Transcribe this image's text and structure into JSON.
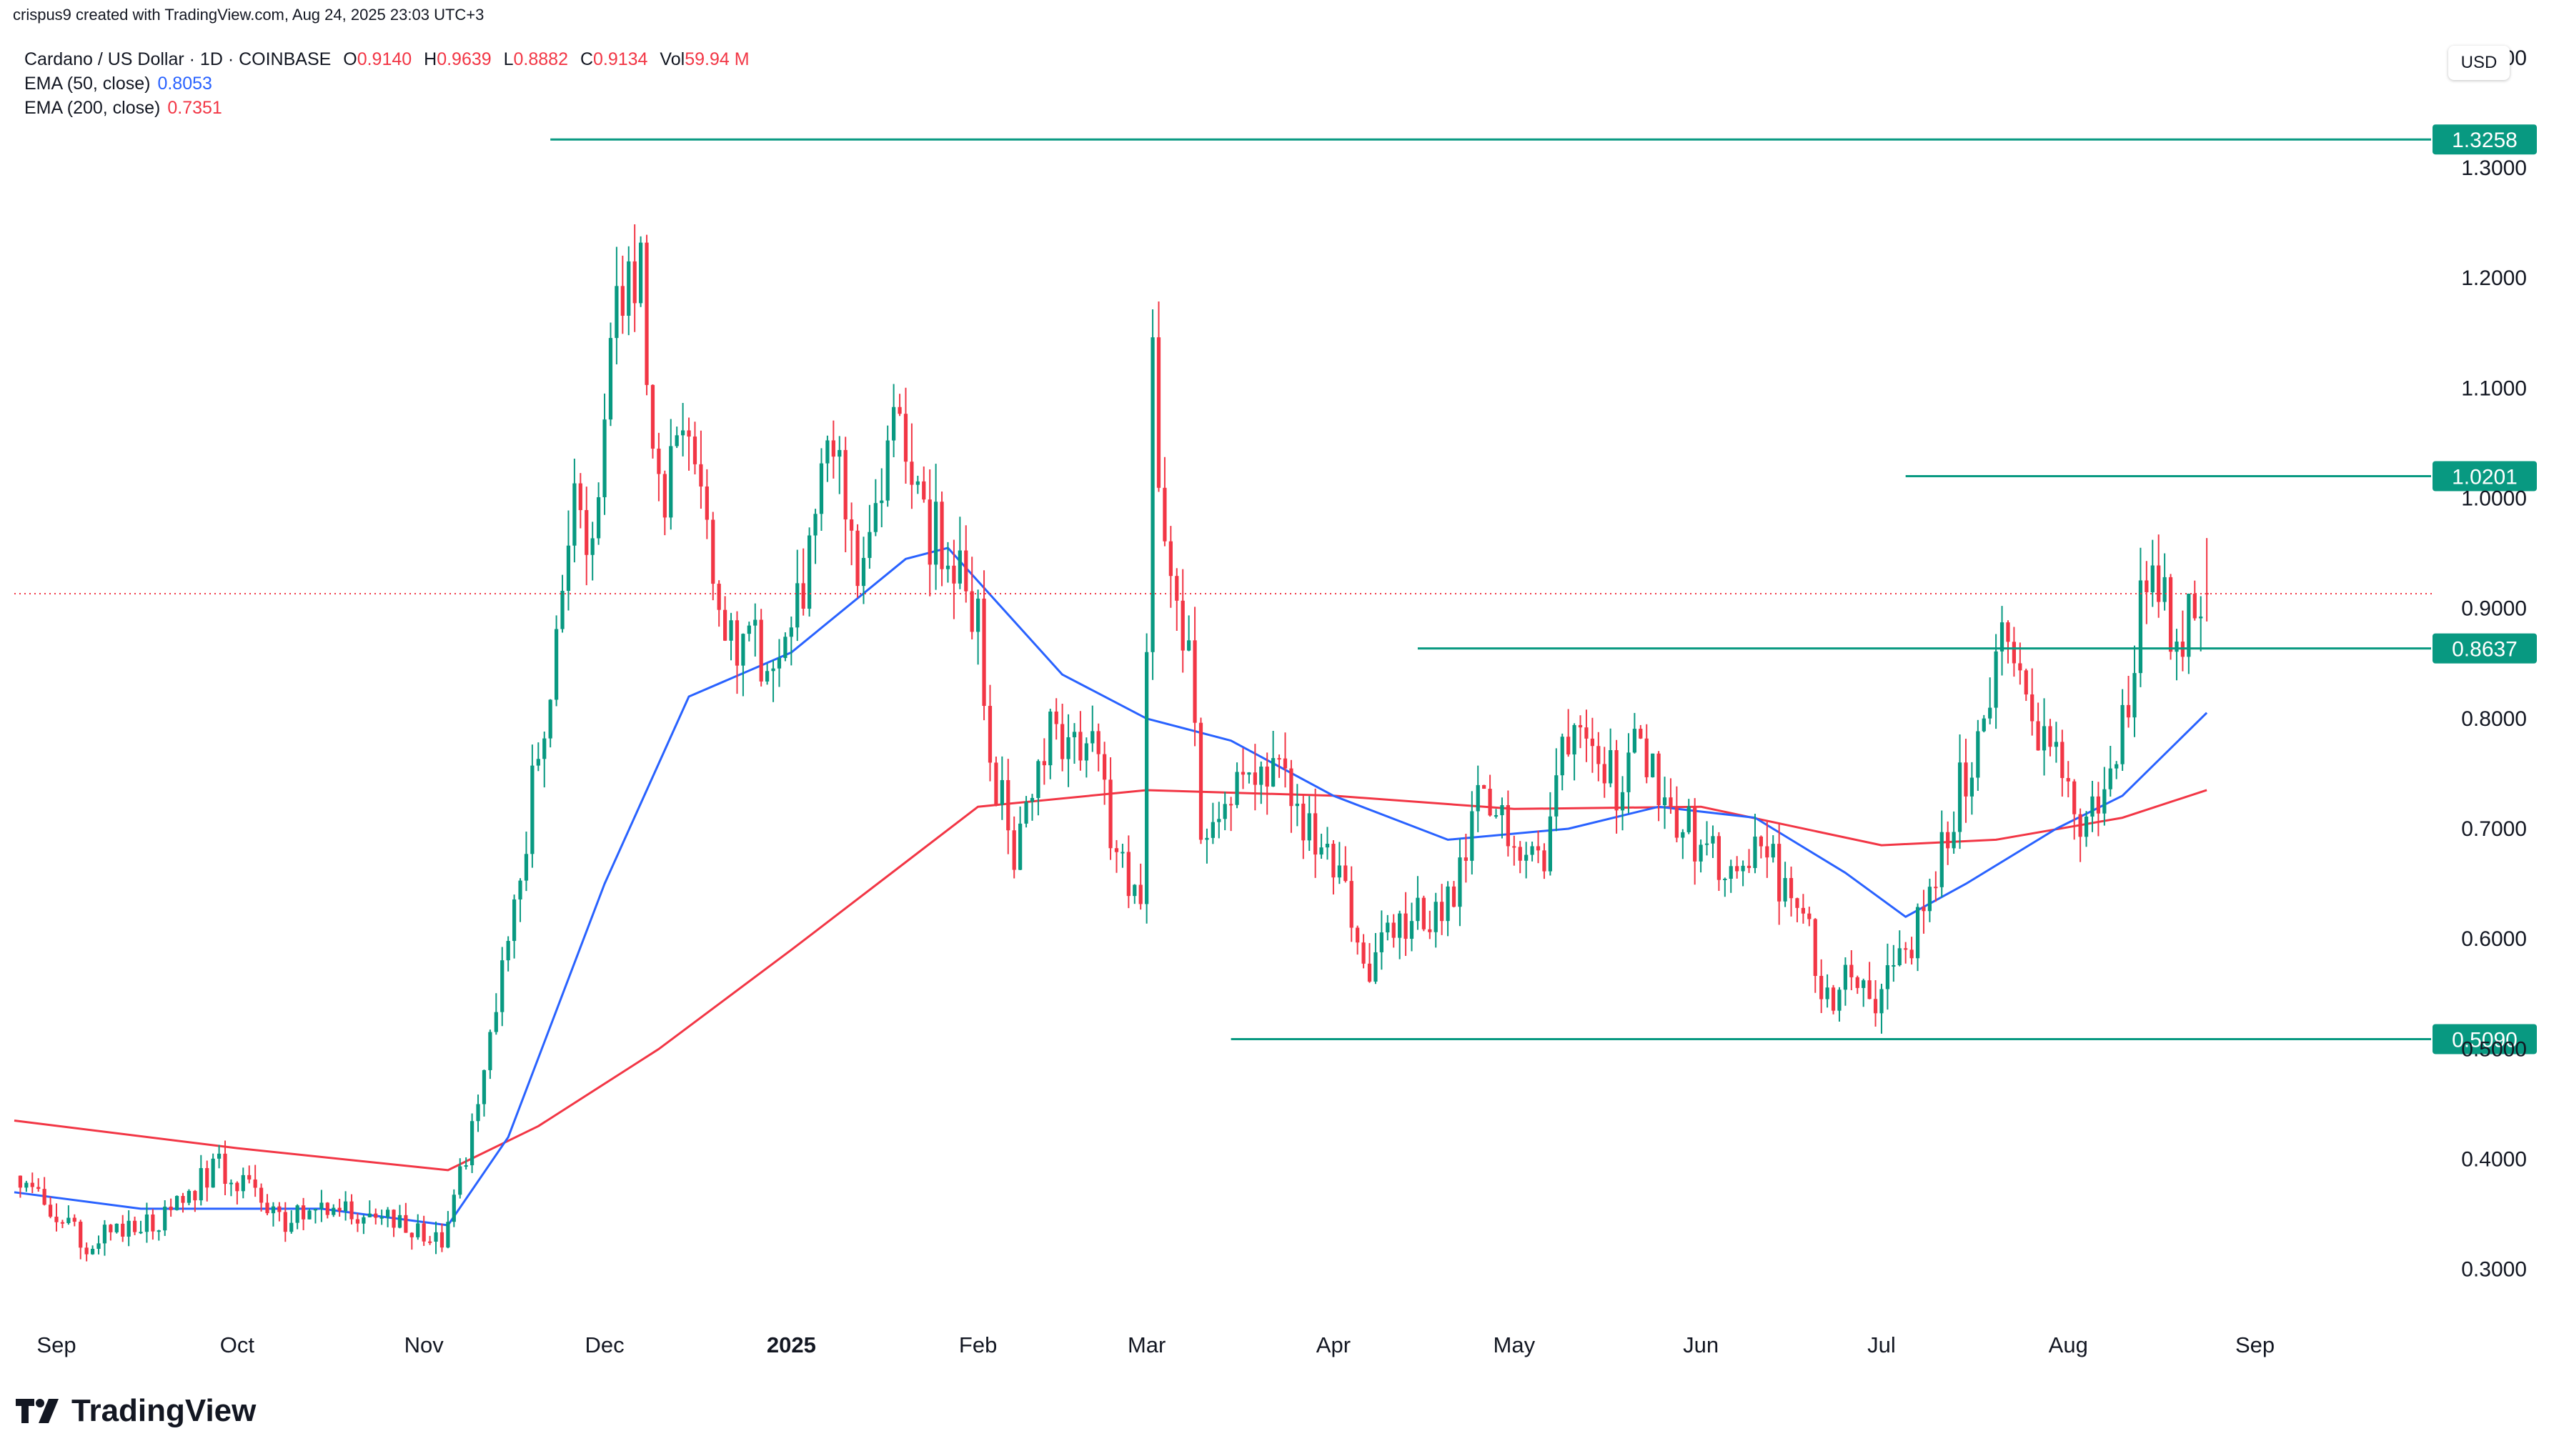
{
  "header": {
    "created_by": "crispus9 created with TradingView.com, Aug 24, 2025 23:03 UTC+3"
  },
  "legend": {
    "symbol": "Cardano / US Dollar · 1D · COINBASE",
    "o_label": "O",
    "o_value": "0.9140",
    "h_label": "H",
    "h_value": "0.9639",
    "l_label": "L",
    "l_value": "0.8882",
    "c_label": "C",
    "c_value": "0.9134",
    "vol_label": "Vol",
    "vol_value": "59.94 M",
    "ema50_label": "EMA (50, close)",
    "ema50_value": "0.8053",
    "ema200_label": "EMA (200, close)",
    "ema200_value": "0.7351"
  },
  "currency_button": "USD",
  "brand": {
    "name": "TradingView"
  },
  "colors": {
    "up": "#089981",
    "down": "#f23645",
    "ema50": "#2962ff",
    "ema200": "#f23645",
    "level": "#089981",
    "last_price": "#f23645"
  },
  "chart_data": {
    "type": "candlestick",
    "title": "Cardano / US Dollar · 1D · COINBASE",
    "ylim": [
      0.22,
      1.42
    ],
    "y_ticks": [
      "1.4000",
      "1.3000",
      "1.2000",
      "1.1000",
      "1.0000",
      "0.9000",
      "0.8000",
      "0.7000",
      "0.6000",
      "0.5000",
      "0.4000",
      "0.3000"
    ],
    "x_ticks": [
      "Sep",
      "Oct",
      "Nov",
      "Dec",
      "2025",
      "Feb",
      "Mar",
      "Apr",
      "May",
      "Jun",
      "Jul",
      "Aug",
      "Sep"
    ],
    "x_range": [
      "2024-08-25",
      "2025-09-30"
    ],
    "last_price": 0.9134,
    "levels": [
      {
        "label": "1.3258",
        "value": 1.3258,
        "from": "2024-11-22"
      },
      {
        "label": "1.0201",
        "value": 1.0201,
        "from": "2025-07-05"
      },
      {
        "label": "0.8637",
        "value": 0.8637,
        "from": "2025-04-15"
      },
      {
        "label": "0.5090",
        "value": 0.509,
        "from": "2025-03-15"
      }
    ],
    "anchors": [
      [
        "2024-08-26",
        0.385
      ],
      [
        "2024-09-06",
        0.325
      ],
      [
        "2024-09-18",
        0.345
      ],
      [
        "2024-09-28",
        0.395
      ],
      [
        "2024-10-08",
        0.345
      ],
      [
        "2024-10-20",
        0.355
      ],
      [
        "2024-11-04",
        0.33
      ],
      [
        "2024-11-10",
        0.44
      ],
      [
        "2024-11-14",
        0.57
      ],
      [
        "2024-11-18",
        0.7
      ],
      [
        "2024-11-22",
        0.83
      ],
      [
        "2024-11-26",
        1.0
      ],
      [
        "2024-11-29",
        0.95
      ],
      [
        "2024-12-03",
        1.18
      ],
      [
        "2024-12-07",
        1.2
      ],
      [
        "2024-12-10",
        1.0
      ],
      [
        "2024-12-16",
        1.05
      ],
      [
        "2024-12-21",
        0.87
      ],
      [
        "2024-12-28",
        0.86
      ],
      [
        "2025-01-03",
        0.9
      ],
      [
        "2025-01-07",
        1.08
      ],
      [
        "2025-01-12",
        0.92
      ],
      [
        "2025-01-16",
        0.98
      ],
      [
        "2025-01-18",
        1.08
      ],
      [
        "2025-01-23",
        0.98
      ],
      [
        "2025-01-27",
        0.95
      ],
      [
        "2025-02-01",
        0.9
      ],
      [
        "2025-02-03",
        0.77
      ],
      [
        "2025-02-07",
        0.68
      ],
      [
        "2025-02-12",
        0.78
      ],
      [
        "2025-02-19",
        0.79
      ],
      [
        "2025-02-25",
        0.66
      ],
      [
        "2025-02-28",
        0.64
      ],
      [
        "2025-03-02",
        1.12
      ],
      [
        "2025-03-04",
        0.95
      ],
      [
        "2025-03-08",
        0.85
      ],
      [
        "2025-03-10",
        0.7
      ],
      [
        "2025-03-16",
        0.74
      ],
      [
        "2025-03-24",
        0.74
      ],
      [
        "2025-03-29",
        0.68
      ],
      [
        "2025-04-03",
        0.64
      ],
      [
        "2025-04-07",
        0.56
      ],
      [
        "2025-04-09",
        0.6
      ],
      [
        "2025-04-16",
        0.62
      ],
      [
        "2025-04-21",
        0.63
      ],
      [
        "2025-04-25",
        0.72
      ],
      [
        "2025-05-01",
        0.7
      ],
      [
        "2025-05-06",
        0.67
      ],
      [
        "2025-05-09",
        0.78
      ],
      [
        "2025-05-12",
        0.82
      ],
      [
        "2025-05-18",
        0.74
      ],
      [
        "2025-05-22",
        0.78
      ],
      [
        "2025-05-27",
        0.72
      ],
      [
        "2025-06-02",
        0.68
      ],
      [
        "2025-06-07",
        0.64
      ],
      [
        "2025-06-11",
        0.7
      ],
      [
        "2025-06-14",
        0.65
      ],
      [
        "2025-06-19",
        0.6
      ],
      [
        "2025-06-22",
        0.54
      ],
      [
        "2025-06-25",
        0.58
      ],
      [
        "2025-06-30",
        0.55
      ],
      [
        "2025-07-04",
        0.58
      ],
      [
        "2025-07-09",
        0.63
      ],
      [
        "2025-07-13",
        0.72
      ],
      [
        "2025-07-18",
        0.8
      ],
      [
        "2025-07-21",
        0.88
      ],
      [
        "2025-07-24",
        0.82
      ],
      [
        "2025-07-28",
        0.79
      ],
      [
        "2025-08-01",
        0.73
      ],
      [
        "2025-08-03",
        0.7
      ],
      [
        "2025-08-07",
        0.73
      ],
      [
        "2025-08-10",
        0.79
      ],
      [
        "2025-08-12",
        0.87
      ],
      [
        "2025-08-14",
        0.94
      ],
      [
        "2025-08-17",
        0.92
      ],
      [
        "2025-08-19",
        0.85
      ],
      [
        "2025-08-21",
        0.92
      ],
      [
        "2025-08-24",
        0.9134
      ]
    ],
    "ema50_path": [
      [
        "2024-08-25",
        0.37
      ],
      [
        "2024-09-15",
        0.355
      ],
      [
        "2024-10-15",
        0.355
      ],
      [
        "2024-11-05",
        0.34
      ],
      [
        "2024-11-15",
        0.42
      ],
      [
        "2024-12-01",
        0.65
      ],
      [
        "2024-12-15",
        0.82
      ],
      [
        "2025-01-01",
        0.86
      ],
      [
        "2025-01-20",
        0.945
      ],
      [
        "2025-01-27",
        0.955
      ],
      [
        "2025-02-15",
        0.84
      ],
      [
        "2025-03-01",
        0.8
      ],
      [
        "2025-03-15",
        0.78
      ],
      [
        "2025-04-01",
        0.73
      ],
      [
        "2025-04-20",
        0.69
      ],
      [
        "2025-05-10",
        0.7
      ],
      [
        "2025-05-25",
        0.72
      ],
      [
        "2025-06-10",
        0.71
      ],
      [
        "2025-06-25",
        0.66
      ],
      [
        "2025-07-05",
        0.62
      ],
      [
        "2025-07-15",
        0.65
      ],
      [
        "2025-07-30",
        0.7
      ],
      [
        "2025-08-10",
        0.73
      ],
      [
        "2025-08-24",
        0.8053
      ]
    ],
    "ema200_path": [
      [
        "2024-08-25",
        0.435
      ],
      [
        "2024-10-01",
        0.41
      ],
      [
        "2024-11-05",
        0.39
      ],
      [
        "2024-11-20",
        0.43
      ],
      [
        "2024-12-10",
        0.5
      ],
      [
        "2025-01-01",
        0.59
      ],
      [
        "2025-02-01",
        0.72
      ],
      [
        "2025-03-01",
        0.735
      ],
      [
        "2025-04-01",
        0.73
      ],
      [
        "2025-05-01",
        0.718
      ],
      [
        "2025-06-01",
        0.72
      ],
      [
        "2025-07-01",
        0.685
      ],
      [
        "2025-07-20",
        0.69
      ],
      [
        "2025-08-10",
        0.71
      ],
      [
        "2025-08-24",
        0.7351
      ]
    ]
  }
}
